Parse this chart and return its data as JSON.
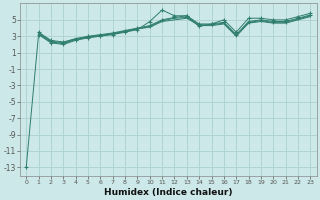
{
  "xlabel": "Humidex (Indice chaleur)",
  "background_color": "#cce8e8",
  "grid_color": "#b0d4d4",
  "line_color": "#2e7d6e",
  "xlim": [
    -0.5,
    23.5
  ],
  "ylim": [
    -14,
    7
  ],
  "yticks": [
    -13,
    -11,
    -9,
    -7,
    -5,
    -3,
    -1,
    1,
    3,
    5
  ],
  "xticks": [
    0,
    1,
    2,
    3,
    4,
    5,
    6,
    7,
    8,
    9,
    10,
    11,
    12,
    13,
    14,
    15,
    16,
    17,
    18,
    19,
    20,
    21,
    22,
    23
  ],
  "series": [
    {
      "x": [
        0,
        1,
        2,
        3,
        4,
        5,
        6,
        7,
        8,
        9,
        10,
        11,
        12,
        13,
        14,
        15,
        16,
        17,
        18,
        19,
        20,
        21,
        22,
        23
      ],
      "y": [
        -13,
        3.2,
        2.2,
        2.0,
        2.5,
        2.8,
        3.0,
        3.2,
        3.5,
        3.8,
        4.8,
        6.2,
        5.5,
        5.5,
        4.2,
        4.5,
        5.0,
        3.5,
        5.2,
        5.2,
        5.0,
        5.0,
        5.4,
        5.8
      ],
      "marker": "+"
    },
    {
      "x": [
        1,
        2,
        3,
        4,
        5,
        6,
        7,
        8,
        9,
        10,
        11,
        12,
        13,
        14,
        15,
        16,
        17,
        18,
        19,
        20,
        21,
        22,
        23
      ],
      "y": [
        3.5,
        2.5,
        2.3,
        2.7,
        3.0,
        3.2,
        3.4,
        3.7,
        4.0,
        4.3,
        5.0,
        5.3,
        5.5,
        4.5,
        4.5,
        4.7,
        3.2,
        4.8,
        5.0,
        4.8,
        4.8,
        5.2,
        5.6
      ],
      "marker": "+"
    },
    {
      "x": [
        1,
        2,
        3,
        4,
        5,
        6,
        7,
        8,
        9,
        10,
        11,
        12,
        13,
        14,
        15,
        16,
        17,
        18,
        19,
        20,
        21,
        22,
        23
      ],
      "y": [
        3.3,
        2.3,
        2.1,
        2.6,
        2.9,
        3.1,
        3.3,
        3.6,
        3.9,
        4.1,
        4.8,
        5.0,
        5.2,
        4.3,
        4.3,
        4.5,
        3.0,
        4.6,
        4.8,
        4.6,
        4.6,
        5.0,
        5.4
      ],
      "marker": null
    },
    {
      "x": [
        1,
        2,
        3,
        4,
        5,
        6,
        7,
        8,
        9,
        10,
        11,
        12,
        13,
        14,
        15,
        16,
        17,
        18,
        19,
        20,
        21,
        22,
        23
      ],
      "y": [
        3.4,
        2.4,
        2.2,
        2.7,
        2.9,
        3.1,
        3.3,
        3.6,
        3.9,
        4.2,
        4.9,
        5.2,
        5.3,
        4.4,
        4.4,
        4.6,
        3.1,
        4.7,
        4.9,
        4.7,
        4.7,
        5.1,
        5.5
      ],
      "marker": null
    }
  ]
}
